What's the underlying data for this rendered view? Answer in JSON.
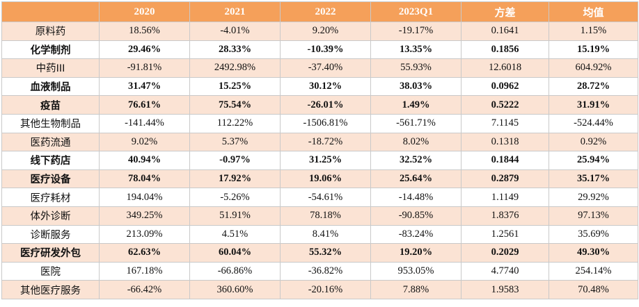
{
  "table": {
    "headers": [
      "",
      "2020",
      "2021",
      "2022",
      "2023Q1",
      "方差",
      "均值"
    ],
    "rows": [
      {
        "name": "原料药",
        "bold": false,
        "values": [
          "18.56%",
          "-4.01%",
          "9.20%",
          "-19.17%",
          "0.1641",
          "1.15%"
        ]
      },
      {
        "name": "化学制剂",
        "bold": true,
        "values": [
          "29.46%",
          "28.33%",
          "-10.39%",
          "13.35%",
          "0.1856",
          "15.19%"
        ]
      },
      {
        "name": "中药III",
        "bold": false,
        "values": [
          "-91.81%",
          "2492.98%",
          "-37.40%",
          "55.93%",
          "12.6018",
          "604.92%"
        ]
      },
      {
        "name": "血液制品",
        "bold": true,
        "values": [
          "31.47%",
          "15.25%",
          "30.12%",
          "38.03%",
          "0.0962",
          "28.72%"
        ]
      },
      {
        "name": "疫苗",
        "bold": true,
        "values": [
          "76.61%",
          "75.54%",
          "-26.01%",
          "1.49%",
          "0.5222",
          "31.91%"
        ]
      },
      {
        "name": "其他生物制品",
        "bold": false,
        "values": [
          "-141.44%",
          "112.22%",
          "-1506.81%",
          "-561.71%",
          "7.1145",
          "-524.44%"
        ]
      },
      {
        "name": "医药流通",
        "bold": false,
        "values": [
          "9.02%",
          "5.37%",
          "-18.72%",
          "8.02%",
          "0.1318",
          "0.92%"
        ]
      },
      {
        "name": "线下药店",
        "bold": true,
        "values": [
          "40.94%",
          "-0.97%",
          "31.25%",
          "32.52%",
          "0.1844",
          "25.94%"
        ]
      },
      {
        "name": "医疗设备",
        "bold": true,
        "values": [
          "78.04%",
          "17.92%",
          "19.06%",
          "25.64%",
          "0.2879",
          "35.17%"
        ]
      },
      {
        "name": "医疗耗材",
        "bold": false,
        "values": [
          "194.04%",
          "-5.26%",
          "-54.61%",
          "-14.48%",
          "1.1149",
          "29.92%"
        ]
      },
      {
        "name": "体外诊断",
        "bold": false,
        "values": [
          "349.25%",
          "51.91%",
          "78.18%",
          "-90.85%",
          "1.8376",
          "97.13%"
        ]
      },
      {
        "name": "诊断服务",
        "bold": false,
        "values": [
          "213.09%",
          "4.51%",
          "8.41%",
          "-83.24%",
          "1.2561",
          "35.69%"
        ]
      },
      {
        "name": "医疗研发外包",
        "bold": true,
        "values": [
          "62.63%",
          "60.04%",
          "55.32%",
          "19.20%",
          "0.2029",
          "49.30%"
        ]
      },
      {
        "name": "医院",
        "bold": false,
        "values": [
          "167.18%",
          "-66.86%",
          "-36.82%",
          "953.05%",
          "4.7740",
          "254.14%"
        ]
      },
      {
        "name": "其他医疗服务",
        "bold": false,
        "values": [
          "-66.42%",
          "360.60%",
          "-20.16%",
          "7.88%",
          "1.9583",
          "70.48%"
        ]
      }
    ]
  },
  "colors": {
    "header_bg": "#f5a05a",
    "band_bg": "#fbe3d4",
    "header_text": "#ffffff"
  }
}
